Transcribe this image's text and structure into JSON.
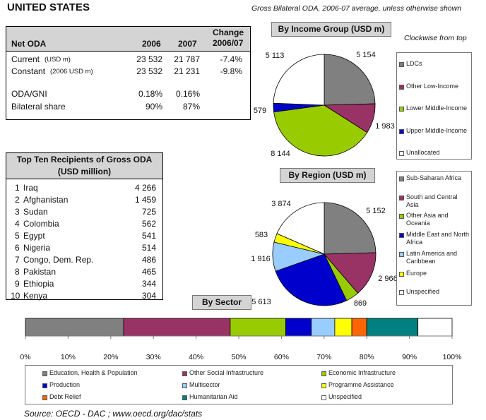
{
  "header": {
    "country": "UNITED STATES",
    "subtitle": "Gross Bilateral ODA, 2006-07 average, unless otherwise shown"
  },
  "oda_table": {
    "label": "Net ODA",
    "col_2006": "2006",
    "col_2007": "2007",
    "col_change_1": "Change",
    "col_change_2": "2006/07",
    "rows": [
      {
        "label": "Current",
        "note": "(USD m)",
        "v2006": "23 532",
        "v2007": "21 787",
        "change": "-7.4%"
      },
      {
        "label": "Constant",
        "note": "(2006 USD m)",
        "v2006": "23 532",
        "v2007": "21 231",
        "change": "-9.8%"
      },
      {
        "label": "ODA/GNI",
        "note": "",
        "v2006": "0.18%",
        "v2007": "0.16%",
        "change": ""
      },
      {
        "label": "Bilateral share",
        "note": "",
        "v2006": "90%",
        "v2007": "87%",
        "change": ""
      }
    ]
  },
  "top10": {
    "title_1": "Top Ten Recipients of Gross ODA",
    "title_2": "(USD million)",
    "rows": [
      {
        "rank": "1",
        "name": "Iraq",
        "value": "4 266"
      },
      {
        "rank": "2",
        "name": "Afghanistan",
        "value": "1 459"
      },
      {
        "rank": "3",
        "name": "Sudan",
        "value": "725"
      },
      {
        "rank": "4",
        "name": "Colombia",
        "value": "562"
      },
      {
        "rank": "5",
        "name": "Egypt",
        "value": "541"
      },
      {
        "rank": "6",
        "name": "Nigeria",
        "value": "514"
      },
      {
        "rank": "7",
        "name": "Congo, Dem. Rep.",
        "value": "486"
      },
      {
        "rank": "8",
        "name": "Pakistan",
        "value": "465"
      },
      {
        "rank": "9",
        "name": "Ethiopia",
        "value": "344"
      },
      {
        "rank": "10",
        "name": "Kenya",
        "value": "304"
      }
    ]
  },
  "clockwise_note": "Clockwise from top",
  "source": "Source:   OECD - DAC ; www.oecd.org/dac/stats",
  "chart_data": [
    {
      "type": "pie",
      "title": "By Income Group (USD m)",
      "labels": [
        "LDCs",
        "Other Low-Income",
        "Lower Middle-Income",
        "Upper Middle-Income",
        "Unallocated"
      ],
      "values": [
        5154,
        1983,
        8144,
        579,
        5113
      ],
      "value_labels": [
        "5 154",
        "1 983",
        "8 144",
        "579",
        "5 113"
      ],
      "colors": [
        "#808080",
        "#993366",
        "#99cc00",
        "#0000cc",
        "#ffffff"
      ],
      "legend": "right"
    },
    {
      "type": "pie",
      "title": "By Region (USD m)",
      "labels": [
        "Sub-Saharan Africa",
        "South and Central Asia",
        "Other Asia and Oceania",
        "Middle East and North Africa",
        "Latin America and Caribbean",
        "Europe",
        "Unspecified"
      ],
      "values": [
        5152,
        2966,
        869,
        5613,
        1916,
        583,
        3874
      ],
      "value_labels": [
        "5 152",
        "2 966",
        "869",
        "5 613",
        "1 916",
        "583",
        "3 874"
      ],
      "colors": [
        "#808080",
        "#993366",
        "#99cc00",
        "#0000cc",
        "#99ccff",
        "#ffff00",
        "#ffffff"
      ],
      "legend": "right"
    },
    {
      "type": "bar",
      "orientation": "horizontal-stacked",
      "title": "By Sector",
      "categories": [
        "Education, Health & Population",
        "Other Social Infrastructure",
        "Economic Infrastructure",
        "Production",
        "Multisector",
        "Programme Assistance",
        "Debt Relief",
        "Humanitarian Aid",
        "Unspecified"
      ],
      "values": [
        23,
        25,
        13,
        6,
        5.5,
        4,
        3.5,
        12,
        8
      ],
      "colors": [
        "#808080",
        "#993366",
        "#99cc00",
        "#0000cc",
        "#99ccff",
        "#ffff00",
        "#ff6600",
        "#008080",
        "#ffffff"
      ],
      "x_ticks": [
        "0%",
        "10%",
        "20%",
        "30%",
        "40%",
        "50%",
        "60%",
        "70%",
        "80%",
        "90%",
        "100%"
      ],
      "xlim": [
        0,
        100
      ],
      "legend": "bottom"
    }
  ]
}
